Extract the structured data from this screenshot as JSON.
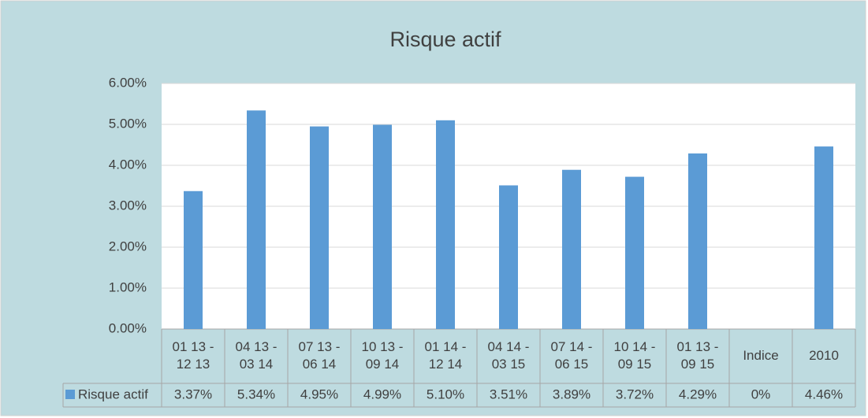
{
  "chart_data": {
    "type": "bar",
    "title": "Risque actif",
    "categories": [
      [
        "01 13 -",
        "12 13"
      ],
      [
        "04 13 -",
        "03 14"
      ],
      [
        "07 13 -",
        "06 14"
      ],
      [
        "10 13 -",
        "09 14"
      ],
      [
        "01 14 -",
        "12 14"
      ],
      [
        "04 14 -",
        "03 15"
      ],
      [
        "07 14 -",
        "06 15"
      ],
      [
        "10 14 -",
        "09 15"
      ],
      [
        "01 13 -",
        "09 15"
      ],
      [
        "Indice"
      ],
      [
        "2010"
      ]
    ],
    "series": [
      {
        "name": "Risque actif",
        "color": "#5b9bd5",
        "values": [
          3.37,
          5.34,
          4.95,
          4.99,
          5.1,
          3.51,
          3.89,
          3.72,
          4.29,
          0,
          4.46
        ],
        "value_labels": [
          "3.37%",
          "5.34%",
          "4.95%",
          "4.99%",
          "5.10%",
          "3.51%",
          "3.89%",
          "3.72%",
          "4.29%",
          "0%",
          "4.46%"
        ]
      }
    ],
    "ylim": [
      0,
      6
    ],
    "yticks": [
      {
        "value": 0,
        "label": "0.00%"
      },
      {
        "value": 1,
        "label": "1.00%"
      },
      {
        "value": 2,
        "label": "2.00%"
      },
      {
        "value": 3,
        "label": "3.00%"
      },
      {
        "value": 4,
        "label": "4.00%"
      },
      {
        "value": 5,
        "label": "5.00%"
      },
      {
        "value": 6,
        "label": "6.00%"
      }
    ],
    "grid": true
  }
}
